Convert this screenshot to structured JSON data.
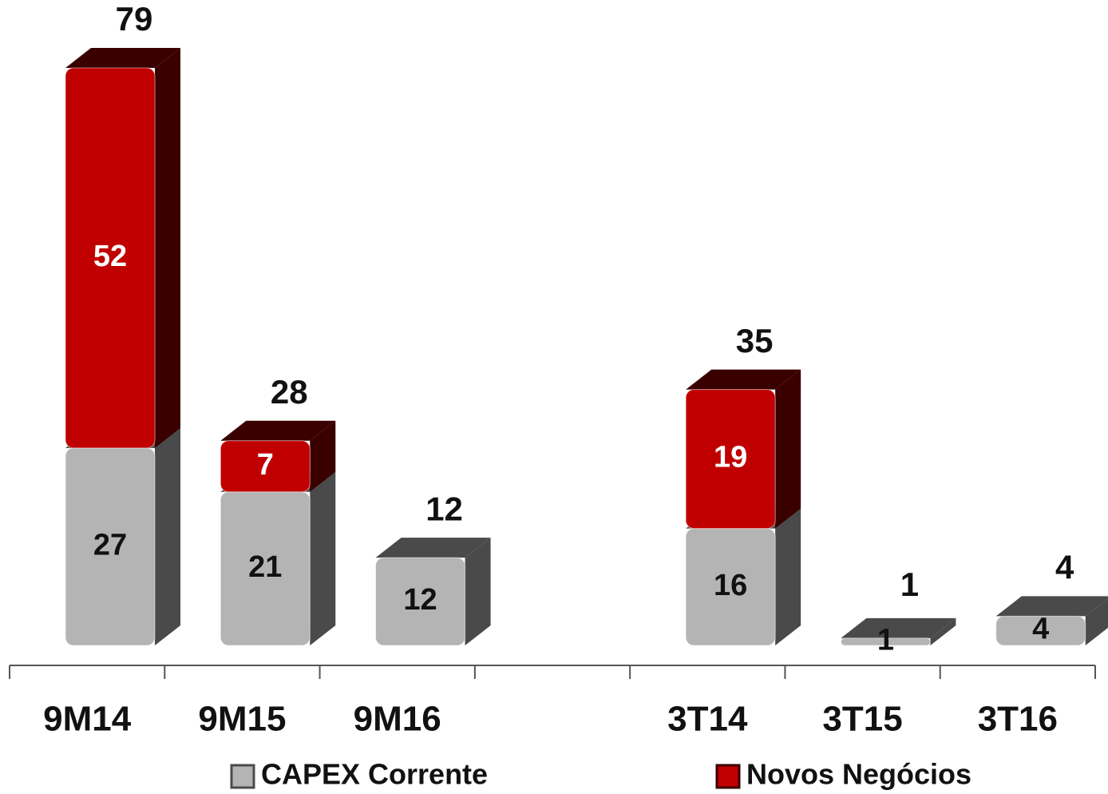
{
  "chart_data": {
    "type": "bar",
    "stacked": true,
    "categories": [
      "9M14",
      "9M15",
      "9M16",
      null,
      "3T14",
      "3T15",
      "3T16"
    ],
    "series": [
      {
        "name": "CAPEX Corrente",
        "color": "#b4b4b4",
        "side_color": "#4a4a4a",
        "values": [
          27,
          21,
          12,
          null,
          16,
          1,
          4
        ]
      },
      {
        "name": "Novos Negócios",
        "color": "#c00000",
        "side_color": "#3a0000",
        "values": [
          52,
          7,
          null,
          null,
          19,
          null,
          null
        ]
      }
    ],
    "totals": [
      79,
      28,
      12,
      null,
      35,
      1,
      4
    ],
    "legend": "bottom"
  }
}
